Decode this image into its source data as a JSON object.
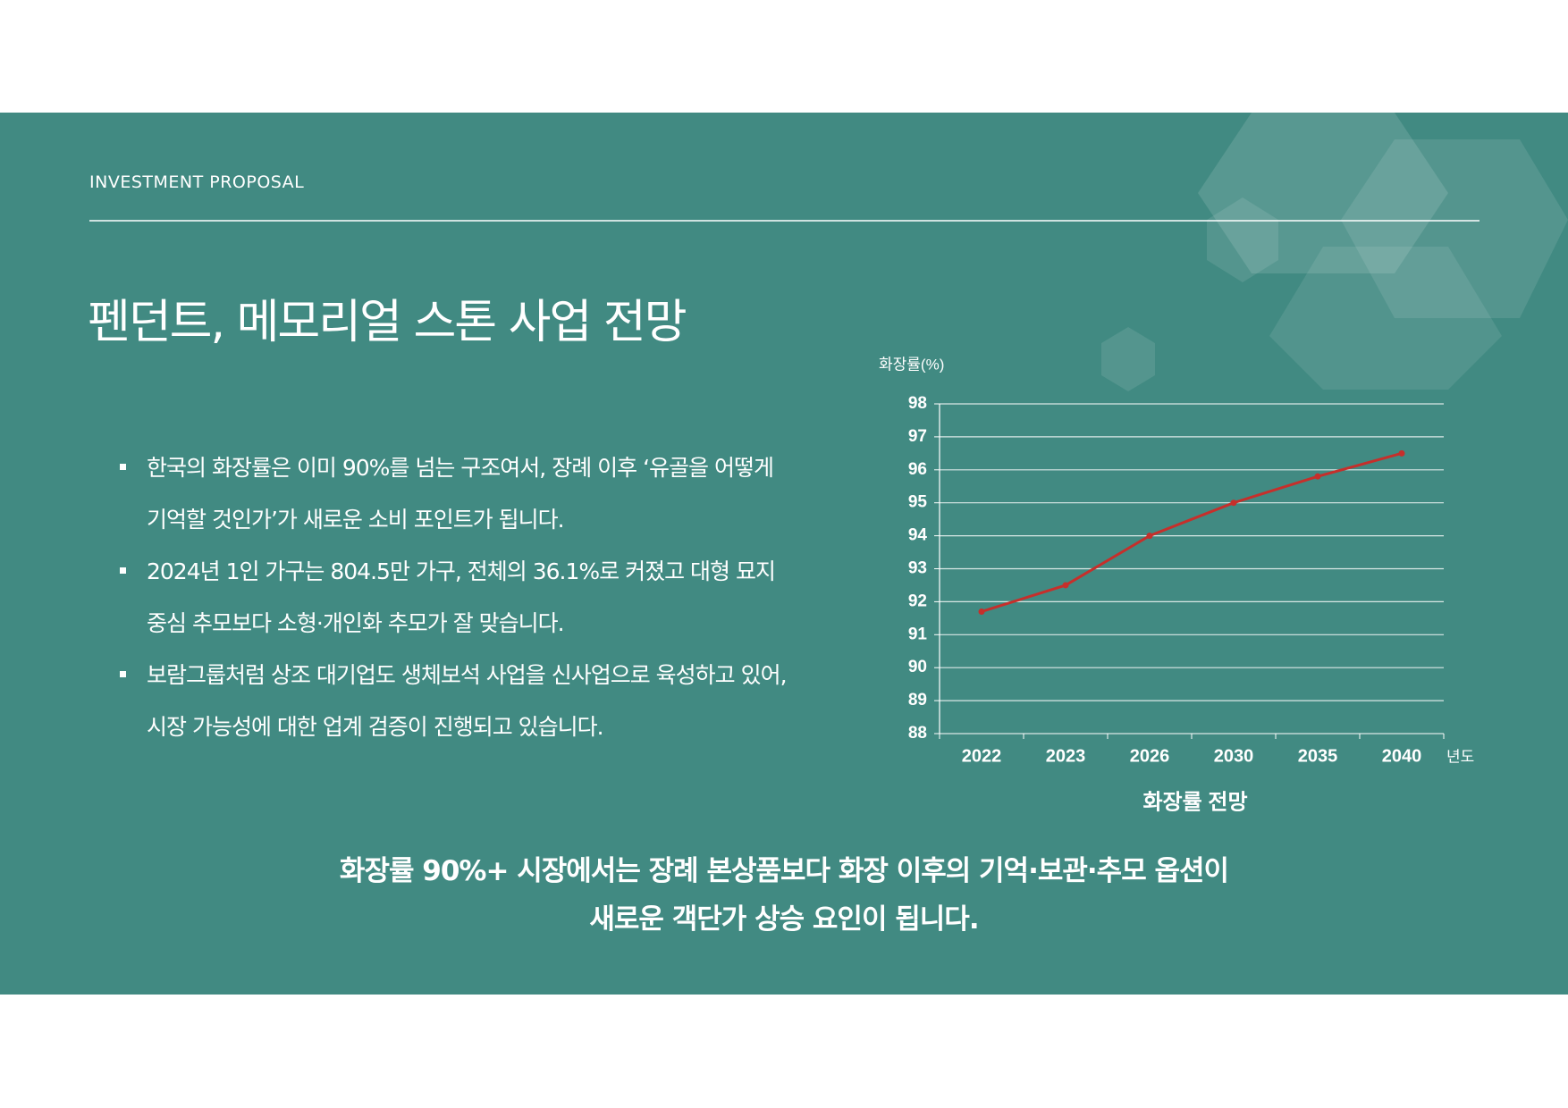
{
  "header": {
    "label": "INVESTMENT PROPOSAL",
    "title": "펜던트, 메모리얼 스톤 사업 전망"
  },
  "bullets": [
    "한국의 화장률은 이미 90%를 넘는 구조여서, 장례 이후 ‘유골을 어떻게 기억할 것인가’가 새로운 소비 포인트가 됩니다.",
    "2024년 1인 가구는 804.5만 가구, 전체의 36.1%로 커졌고 대형 묘지 중심 추모보다 소형·개인화 추모가 잘 맞습니다.",
    "보람그룹처럼 상조 대기업도 생체보석 사업을 신사업으로 육성하고 있어, 시장 가능성에 대한 업계 검증이 진행되고 있습니다."
  ],
  "chart_data": {
    "type": "line",
    "title": "화장률 전망",
    "y_label": "화장률(%)",
    "x_label": "년도",
    "categories": [
      "2022",
      "2023",
      "2026",
      "2030",
      "2035",
      "2040"
    ],
    "values": [
      91.7,
      92.5,
      94.0,
      95.0,
      95.8,
      96.5
    ],
    "color": "#c62f2b",
    "ylim": [
      88,
      98
    ],
    "yticks": [
      88,
      89,
      90,
      91,
      92,
      93,
      94,
      95,
      96,
      97,
      98
    ],
    "grid": true
  },
  "conclusion": [
    "화장률 90%+ 시장에서는 장례 본상품보다 화장 이후의 기억·보관·추모 옵션이",
    "새로운 객단가 상승 요인이 됩니다."
  ]
}
